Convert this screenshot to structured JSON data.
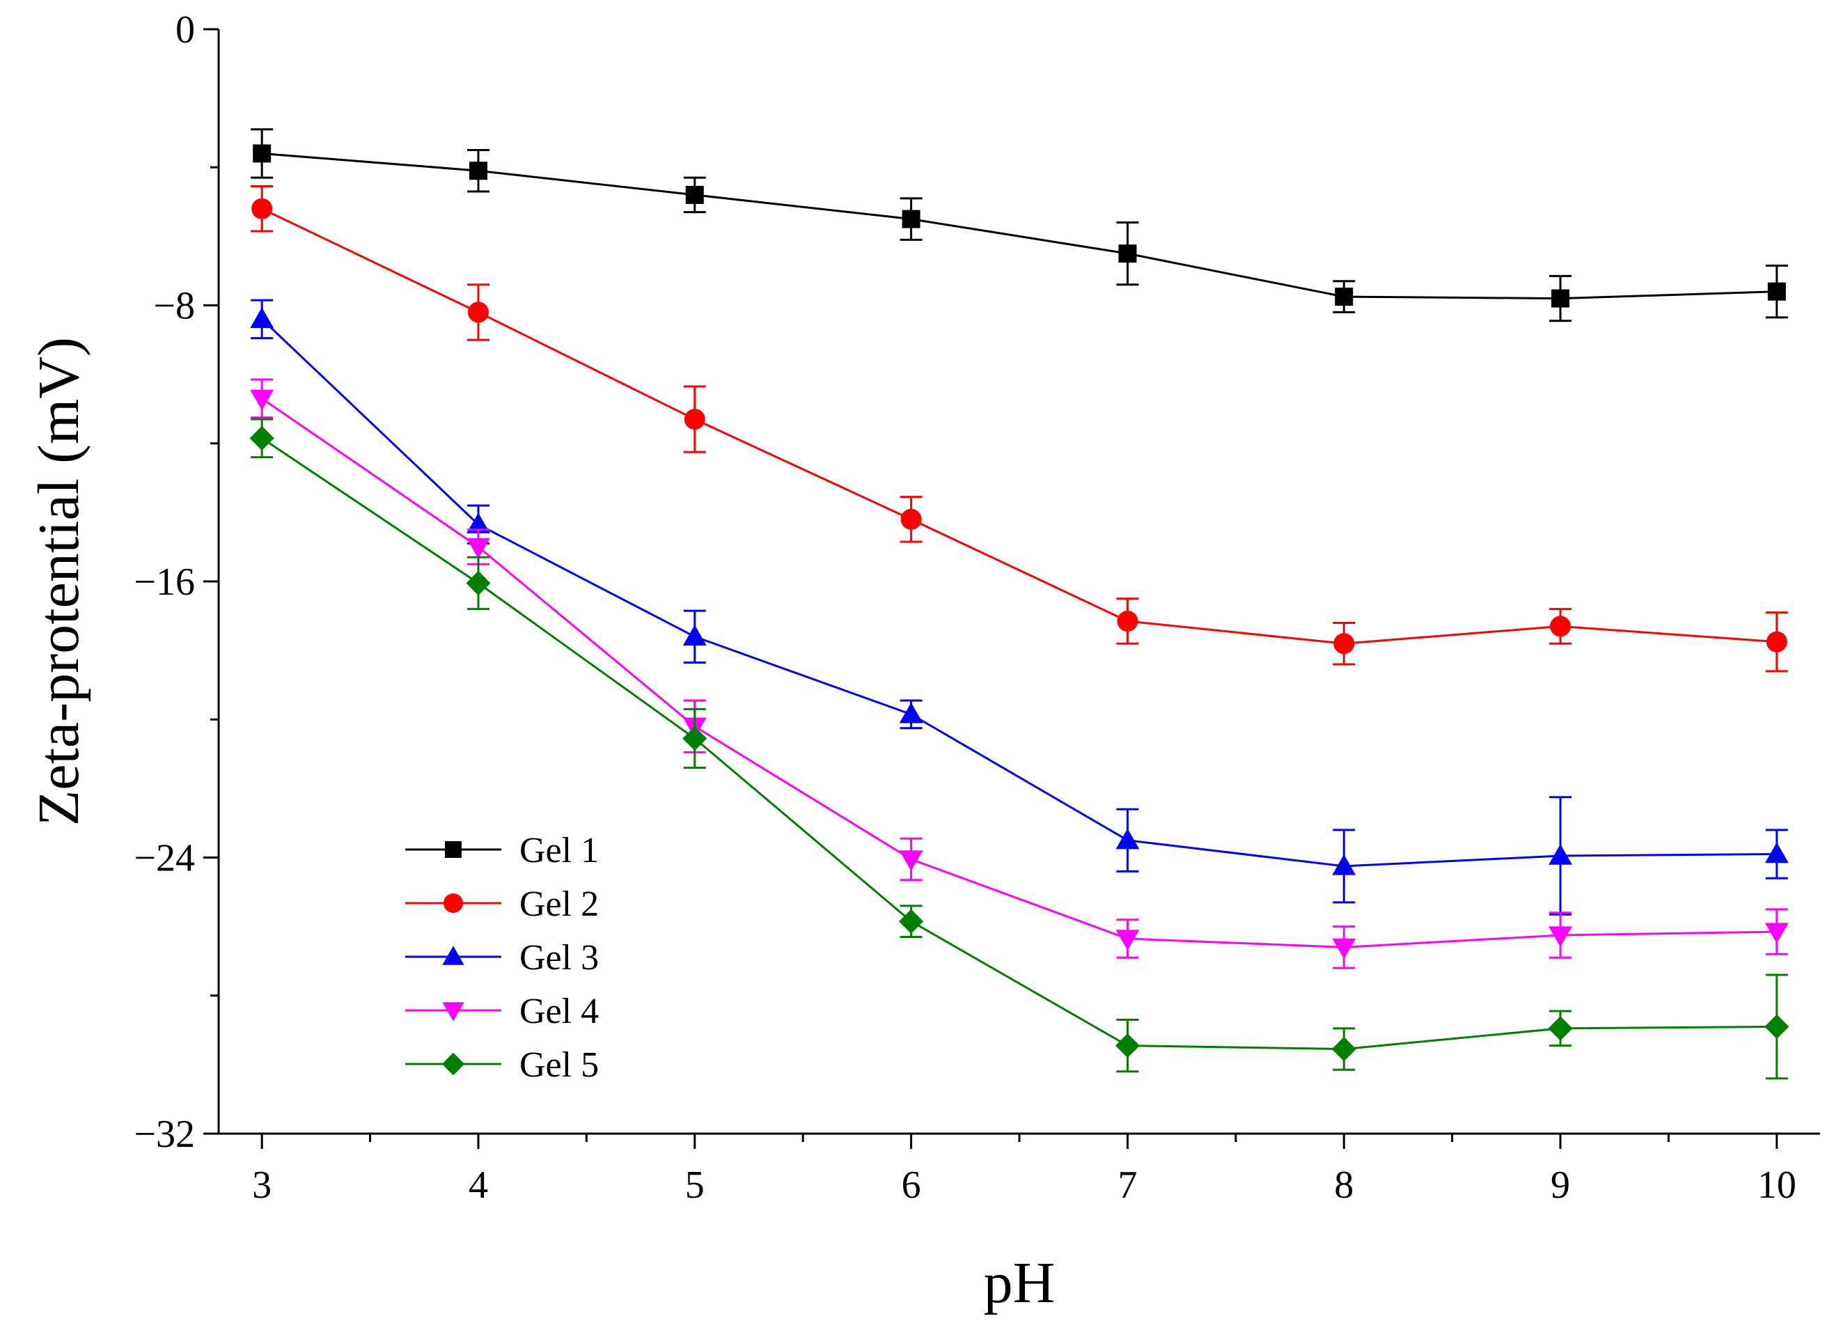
{
  "chart_data": {
    "type": "line",
    "title": "",
    "xlabel": "pH",
    "ylabel": "Zeta-protential (mV)",
    "xlim": [
      2.8,
      10.2
    ],
    "ylim": [
      -32,
      0
    ],
    "xticks": [
      3,
      4,
      5,
      6,
      7,
      8,
      9,
      10
    ],
    "xtick_labels": [
      "3",
      "4",
      "5",
      "6",
      "7",
      "8",
      "9",
      "10"
    ],
    "yticks": [
      0,
      -8,
      -16,
      -24,
      -32
    ],
    "ytick_labels": [
      "0",
      "−8",
      "−16",
      "−24",
      "−32"
    ],
    "x": [
      3,
      4,
      5,
      6,
      7,
      8,
      9,
      10
    ],
    "legend_position": "bottom-left",
    "grid": false,
    "series": [
      {
        "name": "Gel 1",
        "color": "#000000",
        "marker": "square",
        "values": [
          -3.6,
          -4.1,
          -4.8,
          -5.5,
          -6.5,
          -7.75,
          -7.8,
          -7.6
        ],
        "errors": [
          0.7,
          0.6,
          0.5,
          0.6,
          0.9,
          0.45,
          0.65,
          0.75
        ]
      },
      {
        "name": "Gel 2",
        "color": "#ff0000",
        "marker": "circle",
        "values": [
          -5.2,
          -8.2,
          -11.3,
          -14.2,
          -17.15,
          -17.8,
          -17.3,
          -17.75
        ],
        "errors": [
          0.65,
          0.8,
          0.95,
          0.65,
          0.65,
          0.6,
          0.5,
          0.85
        ]
      },
      {
        "name": "Gel 3",
        "color": "#0000ff",
        "marker": "triangle-up",
        "values": [
          -8.4,
          -14.35,
          -17.6,
          -19.85,
          -23.5,
          -24.25,
          -23.95,
          -23.9
        ],
        "errors": [
          0.55,
          0.55,
          0.75,
          0.4,
          0.9,
          1.05,
          1.7,
          0.7
        ]
      },
      {
        "name": "Gel 4",
        "color": "#ff00ff",
        "marker": "triangle-down",
        "values": [
          -10.7,
          -15.0,
          -20.2,
          -24.05,
          -26.35,
          -26.6,
          -26.25,
          -26.15
        ],
        "errors": [
          0.55,
          0.5,
          0.75,
          0.6,
          0.55,
          0.6,
          0.65,
          0.65
        ]
      },
      {
        "name": "Gel 5",
        "color": "#007f00",
        "marker": "diamond",
        "values": [
          -11.85,
          -16.05,
          -20.55,
          -25.85,
          -29.45,
          -29.55,
          -28.95,
          -28.9
        ],
        "errors": [
          0.55,
          0.75,
          0.85,
          0.45,
          0.75,
          0.6,
          0.5,
          1.5
        ]
      }
    ]
  }
}
